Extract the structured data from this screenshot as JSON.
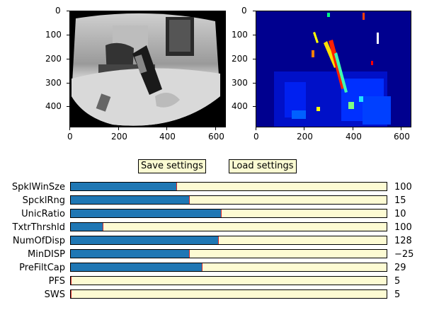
{
  "left_plot": {
    "image_description_icon": "grayscale-camera-frame",
    "yticks": [
      "0",
      "100",
      "200",
      "300",
      "400"
    ],
    "xticks": [
      "0",
      "200",
      "400",
      "600"
    ]
  },
  "right_plot": {
    "image_description_icon": "disparity-map-jet",
    "yticks": [
      "0",
      "100",
      "200",
      "300",
      "400"
    ],
    "xticks": [
      "0",
      "200",
      "400",
      "600"
    ]
  },
  "buttons": {
    "save_label": "Save settings",
    "load_label": "Load settings"
  },
  "colors": {
    "button_bg": "#fbfbd2",
    "track_bg": "#fdfbd3",
    "fill": "#1f77b4",
    "handle": "#d62728"
  },
  "sliders": [
    {
      "label": "SpklWinSze",
      "value": "100",
      "fraction": 0.333
    },
    {
      "label": "SpcklRng",
      "value": "15",
      "fraction": 0.375
    },
    {
      "label": "UnicRatio",
      "value": "10",
      "fraction": 0.476
    },
    {
      "label": "TxtrThrshld",
      "value": "100",
      "fraction": 0.1
    },
    {
      "label": "NumOfDisp",
      "value": "128",
      "fraction": 0.467
    },
    {
      "label": "MinDISP",
      "value": "−25",
      "fraction": 0.375
    },
    {
      "label": "PreFiltCap",
      "value": "29",
      "fraction": 0.415
    },
    {
      "label": "PFS",
      "value": "5",
      "fraction": 0.0
    },
    {
      "label": "SWS",
      "value": "5",
      "fraction": 0.0
    }
  ]
}
